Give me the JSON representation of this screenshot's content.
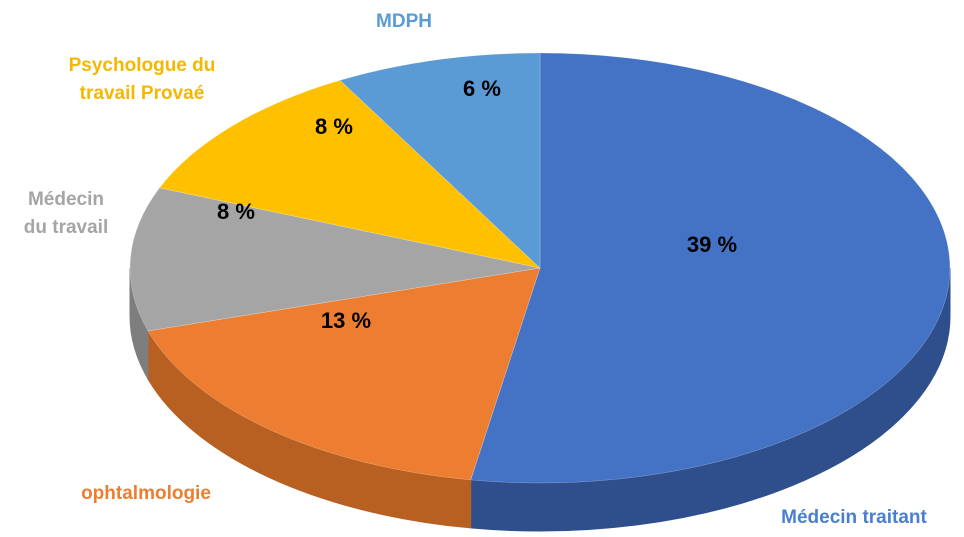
{
  "chart_data": {
    "type": "pie",
    "style": "3d",
    "slices": [
      {
        "name": "Médecin traitant",
        "value": 39,
        "label": "39 %",
        "color": "#4472C4",
        "side_color": "#2E4F8C",
        "label_color": "#4A7FD0"
      },
      {
        "name": "ophtalmologie",
        "value": 13,
        "label": "13 %",
        "color": "#ED7D31",
        "side_color": "#B85F22",
        "label_color": "#ED7D31"
      },
      {
        "name": [
          "Médecin",
          "du travail"
        ],
        "value": 8,
        "label": "8 %",
        "color": "#A5A5A5",
        "side_color": "#7E7E7E",
        "label_color": "#A5A5A5"
      },
      {
        "name": [
          "Psychologue du",
          "travail Provaé"
        ],
        "value": 8,
        "label": "8 %",
        "color": "#FFC000",
        "side_color": "#C79500",
        "label_color": "#F5B800"
      },
      {
        "name": "MDPH",
        "value": 6,
        "label": "6 %",
        "color": "#5B9BD5",
        "side_color": "#3F76A8",
        "label_color": "#5B9BD5"
      }
    ]
  }
}
